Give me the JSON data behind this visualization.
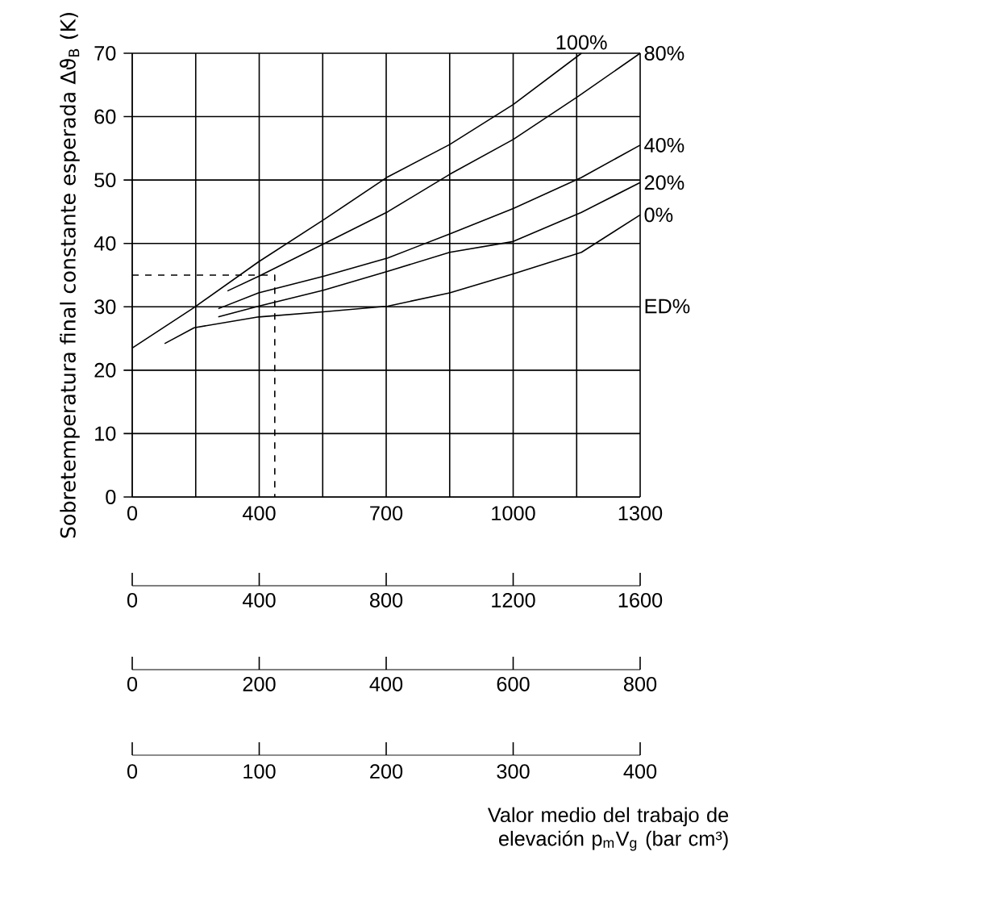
{
  "chart_data": {
    "type": "line",
    "ylabel": "Sobretemperatura final constante esperada Δϑ$_{B}$ (K)",
    "xlim": [
      0,
      1600
    ],
    "ylim": [
      0,
      70
    ],
    "xticks": [
      0,
      {
        "value": 200,
        "label": null
      },
      400,
      {
        "value": 600,
        "label": null
      },
      800,
      {
        "value": 1000,
        "label": null
      },
      1200,
      {
        "value": 1400,
        "label": null
      },
      1600
    ],
    "x2lim": [
      0,
      800
    ],
    "x2ticks": [
      0,
      200,
      400,
      600,
      800
    ],
    "yticks": [
      0,
      10,
      20,
      30,
      40,
      50,
      60,
      70
    ],
    "grid": true,
    "series": [
      {
        "name": "100%",
        "color": "#000000",
        "x": [
          0,
          195,
          398,
          602,
          805,
          1000,
          1200,
          1415
        ],
        "values": [
          23.5,
          29.9,
          37.1,
          43.7,
          50.5,
          55.6,
          61.9,
          70
        ]
      },
      {
        "name": "80%",
        "color": "#000000",
        "x": [
          300,
          398,
          602,
          805,
          1000,
          1200,
          1405,
          1600
        ],
        "values": [
          32.5,
          34.8,
          39.9,
          45.0,
          50.9,
          56.4,
          63.2,
          70
        ]
      },
      {
        "name": "40%",
        "color": "#000000",
        "x": [
          271,
          398,
          602,
          805,
          1000,
          1200,
          1415,
          1600
        ],
        "values": [
          29.7,
          32.2,
          34.8,
          37.7,
          41.5,
          45.5,
          50.4,
          55.5
        ]
      },
      {
        "name": "20%",
        "color": "#000000",
        "x": [
          271,
          398,
          602,
          805,
          1000,
          1200,
          1415,
          1600
        ],
        "values": [
          28.4,
          30.1,
          32.6,
          35.6,
          38.6,
          40.3,
          44.9,
          49.6
        ]
      },
      {
        "name": "0%",
        "color": "#000000",
        "x": [
          102,
          195,
          398,
          602,
          805,
          1000,
          1200,
          1415,
          1600
        ],
        "values": [
          24.2,
          26.7,
          28.4,
          29.2,
          30.1,
          32.2,
          35.2,
          38.6,
          44.5
        ]
      },
      {
        "color": "#000000",
        "line_style": "dashed",
        "x": [
          0,
          449,
          449
        ],
        "values": [
          35,
          35,
          0
        ]
      }
    ],
    "annotations": [
      "ED%",
      "0",
      "400",
      "700",
      "1000",
      "1300",
      "0",
      "100",
      "200",
      "300",
      "400",
      "Valor medio del trabajo de elevación p$_{m}$V$_{g}$ (bar cm³)"
    ]
  }
}
